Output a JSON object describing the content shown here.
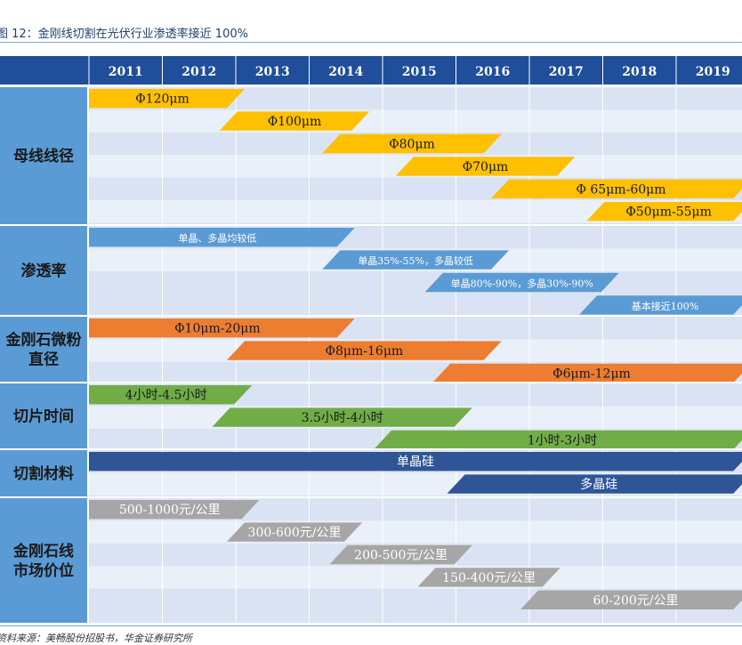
{
  "title": "图 12：金刚线切割在光伏行业渗透率接近 100%",
  "source": "资料来源：美畅股份招股书，华金证券研究所",
  "chart_data": {
    "type": "table",
    "years": [
      "2011",
      "2012",
      "2013",
      "2014",
      "2015",
      "2016",
      "2017",
      "2018",
      "2019"
    ],
    "categories": [
      {
        "label_lines": [
          "母线线径"
        ],
        "color": "#ffc000",
        "text_color": "#1a1a1a",
        "shape": "parallelogram",
        "bars": [
          {
            "label": "Φ120μm",
            "start": 2011.0,
            "end": 2013.0
          },
          {
            "label": "Φ100μm",
            "start": 2012.9,
            "end": 2014.7
          },
          {
            "label": "Φ80μm",
            "start": 2014.3,
            "end": 2016.5
          },
          {
            "label": "Φ70μm",
            "start": 2015.3,
            "end": 2017.5
          },
          {
            "label": "Φ 65μm-60μm",
            "start": 2016.6,
            "end": 2019.9
          },
          {
            "label": "Φ50μm-55μm",
            "start": 2017.9,
            "end": 2019.9
          }
        ]
      },
      {
        "label_lines": [
          "渗透率"
        ],
        "color": "#5b9bd5",
        "text_color": "#ffffff",
        "shape": "parallelogram",
        "bars": [
          {
            "label": "单晶、多晶均较低",
            "start": 2011.0,
            "end": 2014.5
          },
          {
            "label": "单晶35%-55%，多晶较低",
            "start": 2014.3,
            "end": 2016.6
          },
          {
            "label": "单晶80%-90%，多晶30%-90%",
            "start": 2015.7,
            "end": 2018.1
          },
          {
            "label": "基本接近100%",
            "start": 2017.8,
            "end": 2019.9
          }
        ]
      },
      {
        "label_lines": [
          "金刚石微粉",
          "直径"
        ],
        "color": "#ed7d31",
        "text_color": "#1a1a1a",
        "shape": "parallelogram",
        "bars": [
          {
            "label": "Φ10μm-20μm",
            "start": 2011.0,
            "end": 2014.5
          },
          {
            "label": "Φ8μm-16μm",
            "start": 2013.0,
            "end": 2016.5
          },
          {
            "label": "Φ6μm-12μm",
            "start": 2015.8,
            "end": 2019.9
          }
        ]
      },
      {
        "label_lines": [
          "切片时间"
        ],
        "color": "#70ad47",
        "text_color": "#1a1a1a",
        "shape": "parallelogram",
        "bars": [
          {
            "label": "4小时-4.5小时",
            "start": 2011.0,
            "end": 2013.1
          },
          {
            "label": "3.5小时-4小时",
            "start": 2012.8,
            "end": 2016.1
          },
          {
            "label": "1小时-3小时",
            "start": 2015.0,
            "end": 2019.9
          }
        ]
      },
      {
        "label_lines": [
          "切割材料"
        ],
        "color": "#2f5597",
        "text_color": "#ffffff",
        "shape": "parallelogram",
        "bars": [
          {
            "label": "单晶硅",
            "start": 2011.0,
            "end": 2019.9
          },
          {
            "label": "多晶硅",
            "start": 2016.0,
            "end": 2019.9
          }
        ]
      },
      {
        "label_lines": [
          "金刚石线",
          "市场价位"
        ],
        "color": "#a6a6a6",
        "text_color": "#ffffff",
        "shape": "parallelogram",
        "bars": [
          {
            "label": "500-1000元/公里",
            "start": 2011.0,
            "end": 2013.2
          },
          {
            "label": "300-600元/公里",
            "start": 2013.0,
            "end": 2014.6
          },
          {
            "label": "200-500元/公里",
            "start": 2014.4,
            "end": 2016.1
          },
          {
            "label": "150-400元/公里",
            "start": 2015.6,
            "end": 2017.3
          },
          {
            "label": "60-200元/公里",
            "start": 2017.0,
            "end": 2019.9
          }
        ]
      }
    ]
  }
}
